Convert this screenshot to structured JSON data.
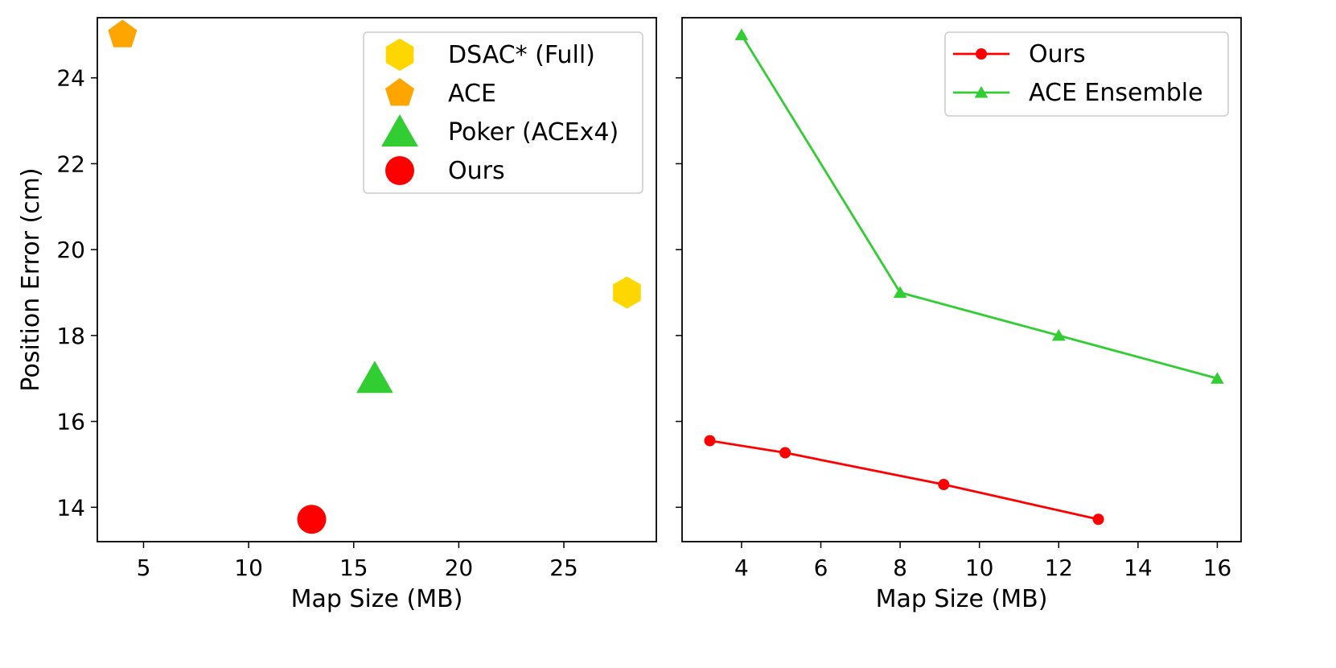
{
  "chart_data": [
    {
      "type": "scatter",
      "xlabel": "Map Size (MB)",
      "ylabel": "Position Error (cm)",
      "xlim": [
        2.8,
        29.4
      ],
      "ylim": [
        13.2,
        25.4
      ],
      "xticks": [
        5,
        10,
        15,
        20,
        25
      ],
      "yticks": [
        14,
        16,
        18,
        20,
        22,
        24
      ],
      "legend_position": "top-right",
      "series": [
        {
          "name": "DSAC* (Full)",
          "marker": "hexagon",
          "color": "#FFD700",
          "points": [
            {
              "x": 28,
              "y": 19.0
            }
          ]
        },
        {
          "name": "ACE",
          "marker": "pentagon",
          "color": "#FFA500",
          "points": [
            {
              "x": 4,
              "y": 25.0
            }
          ]
        },
        {
          "name": "Poker (ACEx4)",
          "marker": "triangle",
          "color": "#32CD32",
          "points": [
            {
              "x": 16,
              "y": 17.0
            }
          ]
        },
        {
          "name": "Ours",
          "marker": "circle",
          "color": "#FF0000",
          "points": [
            {
              "x": 13,
              "y": 13.72
            }
          ]
        }
      ]
    },
    {
      "type": "line",
      "xlabel": "Map Size (MB)",
      "ylabel": "",
      "xlim": [
        2.5,
        16.6
      ],
      "ylim": [
        13.2,
        25.4
      ],
      "xticks": [
        4,
        6,
        8,
        10,
        12,
        14,
        16
      ],
      "yticks": [
        14,
        16,
        18,
        20,
        22,
        24
      ],
      "legend_position": "top-right",
      "series": [
        {
          "name": "Ours",
          "marker": "circle",
          "color": "#FF0000",
          "x": [
            3.2,
            5.1,
            9.1,
            13.0
          ],
          "y": [
            15.55,
            15.27,
            14.53,
            13.72
          ]
        },
        {
          "name": "ACE Ensemble",
          "marker": "triangle",
          "color": "#32CD32",
          "x": [
            4,
            8,
            12,
            16
          ],
          "y": [
            25.0,
            19.0,
            18.0,
            17.0
          ]
        }
      ]
    }
  ]
}
